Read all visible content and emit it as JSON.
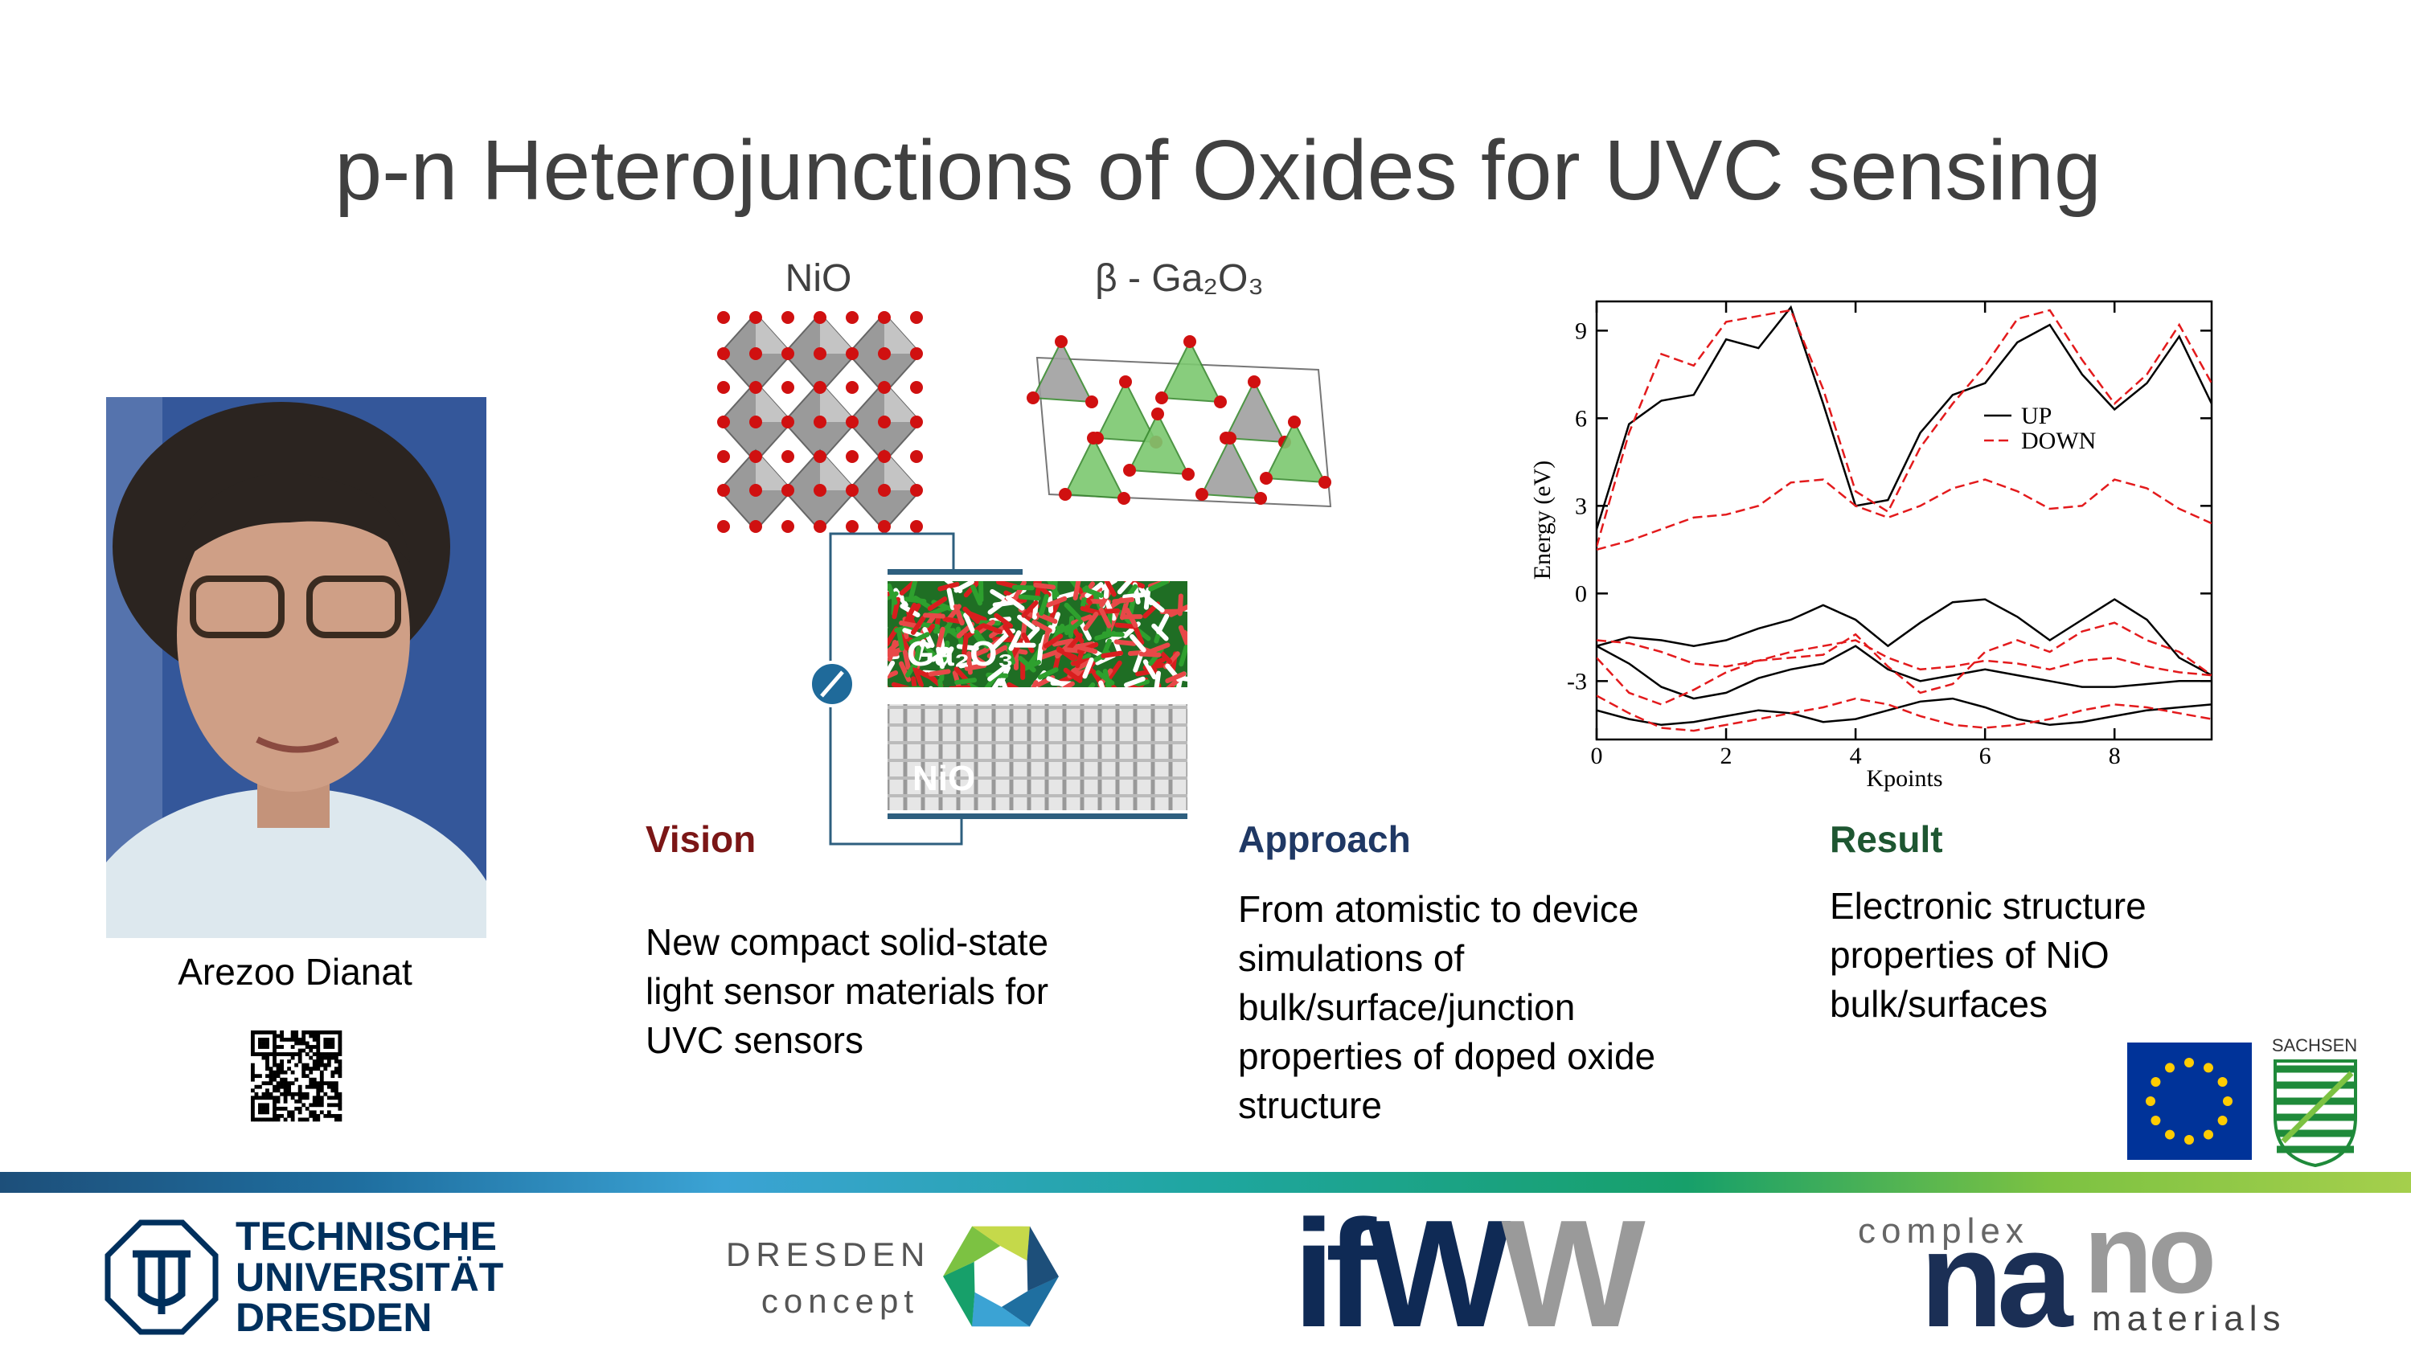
{
  "title": "p-n Heterojunctions of Oxides for UVC sensing",
  "crystals": {
    "nio": "NiO",
    "ga2o3": "β - Ga₂O₃"
  },
  "device": {
    "top": "Ga₂O₃",
    "bottom": "NiO"
  },
  "person": {
    "name": "Arezoo Dianat"
  },
  "columns": [
    {
      "heading": "Vision",
      "lines": [
        "New compact solid-state",
        "light sensor materials for",
        "UVC sensors"
      ]
    },
    {
      "heading": "Approach",
      "lines": [
        "From atomistic to device",
        "simulations of",
        "bulk/surface/junction",
        "properties of doped oxide",
        "structure"
      ]
    },
    {
      "heading": "Result",
      "lines": [
        "Electronic structure",
        "properties of NiO",
        "bulk/surfaces"
      ]
    }
  ],
  "chart_data": {
    "type": "line",
    "x_label": "Kpoints",
    "y_label": "Energy (eV)",
    "xlim": [
      0,
      9.5
    ],
    "ylim": [
      -5,
      10
    ],
    "xticks": [
      0,
      2,
      4,
      6,
      8
    ],
    "yticks": [
      -3,
      0,
      3,
      6,
      9
    ],
    "x": [
      0,
      0.5,
      1,
      1.5,
      2,
      2.5,
      3,
      3.5,
      4,
      4.5,
      5,
      5.5,
      6,
      6.5,
      7,
      7.5,
      8,
      8.5,
      9,
      9.5
    ],
    "series": [
      {
        "name": "UP",
        "color": "#000000",
        "dashed": false,
        "bands": [
          [
            2.2,
            5.8,
            6.6,
            6.8,
            8.7,
            8.4,
            9.8,
            6.5,
            3.0,
            3.2,
            5.5,
            6.8,
            7.2,
            8.6,
            9.2,
            7.5,
            6.3,
            7.2,
            8.8,
            6.5
          ],
          [
            -1.8,
            -1.5,
            -1.6,
            -1.8,
            -1.6,
            -1.2,
            -0.9,
            -0.4,
            -0.9,
            -1.8,
            -1.0,
            -0.3,
            -0.2,
            -0.8,
            -1.6,
            -0.9,
            -0.2,
            -0.9,
            -2.2,
            -2.8
          ],
          [
            -1.8,
            -2.4,
            -3.2,
            -3.6,
            -3.4,
            -2.9,
            -2.6,
            -2.4,
            -1.8,
            -2.6,
            -3.0,
            -2.8,
            -2.6,
            -2.8,
            -3.0,
            -3.2,
            -3.2,
            -3.1,
            -3.0,
            -3.0
          ],
          [
            -4.0,
            -4.3,
            -4.5,
            -4.4,
            -4.2,
            -4.0,
            -4.1,
            -4.4,
            -4.3,
            -4.0,
            -3.7,
            -3.6,
            -3.9,
            -4.3,
            -4.5,
            -4.4,
            -4.2,
            -4.0,
            -3.9,
            -3.8
          ]
        ]
      },
      {
        "name": "DOWN",
        "color": "#e31a1c",
        "dashed": true,
        "bands": [
          [
            1.6,
            5.5,
            8.2,
            7.8,
            9.3,
            9.5,
            9.7,
            7.0,
            3.5,
            2.8,
            5.0,
            6.5,
            7.8,
            9.4,
            9.7,
            8.0,
            6.5,
            7.5,
            9.2,
            7.2
          ],
          [
            1.5,
            1.8,
            2.2,
            2.6,
            2.7,
            3.0,
            3.8,
            3.9,
            3.0,
            2.6,
            3.0,
            3.6,
            3.9,
            3.5,
            2.9,
            3.0,
            3.9,
            3.6,
            2.9,
            2.4
          ],
          [
            -1.6,
            -1.7,
            -2.0,
            -2.4,
            -2.5,
            -2.3,
            -2.0,
            -1.8,
            -1.6,
            -2.2,
            -2.6,
            -2.5,
            -2.3,
            -2.4,
            -2.6,
            -2.3,
            -2.2,
            -2.5,
            -2.7,
            -2.8
          ],
          [
            -2.2,
            -3.4,
            -3.8,
            -3.3,
            -2.7,
            -2.3,
            -2.2,
            -2.1,
            -1.4,
            -2.5,
            -3.4,
            -3.1,
            -2.0,
            -1.6,
            -2.0,
            -1.3,
            -1.0,
            -1.6,
            -2.0,
            -2.8
          ],
          [
            -3.5,
            -4.1,
            -4.6,
            -4.7,
            -4.5,
            -4.3,
            -4.1,
            -3.9,
            -3.6,
            -3.8,
            -4.2,
            -4.5,
            -4.6,
            -4.5,
            -4.3,
            -4.0,
            -3.8,
            -3.9,
            -4.1,
            -4.3
          ]
        ]
      }
    ]
  },
  "logos": {
    "sachsen": "SACHSEN",
    "tu": [
      "TECHNISCHE",
      "UNIVERSITÄT",
      "DRESDEN"
    ],
    "dresden_concept": [
      "DRESDEN",
      "concept"
    ],
    "ifww": [
      "if",
      "W",
      "W"
    ],
    "complex_nano": [
      "complex",
      "na",
      "no",
      "materials"
    ]
  }
}
